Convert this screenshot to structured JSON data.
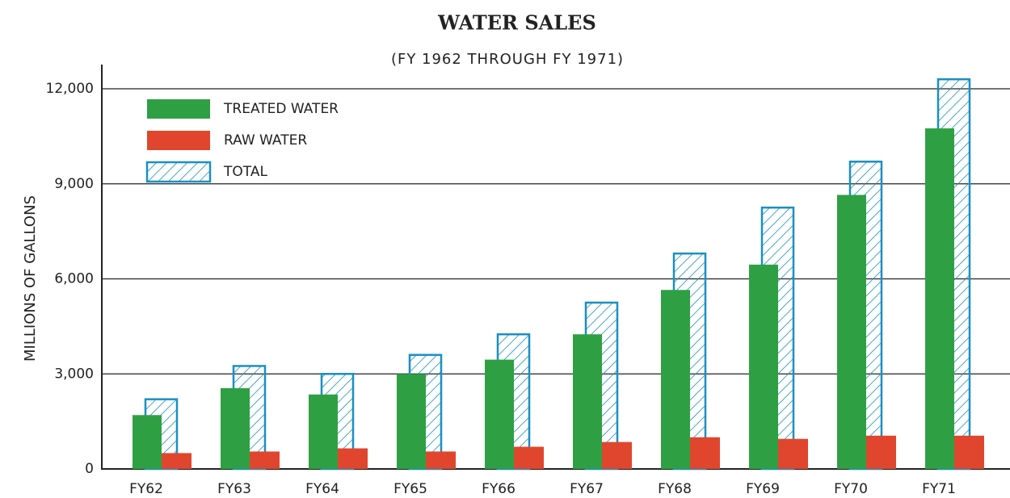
{
  "chart_data": {
    "type": "bar",
    "title": "WATER SALES",
    "subtitle": "(FY 1962 THROUGH FY 1971)",
    "y_label": "MILLIONS OF GALLONS",
    "categories": [
      "FY62",
      "FY63",
      "FY64",
      "FY65",
      "FY66",
      "FY67",
      "FY68",
      "FY69",
      "FY70",
      "FY71"
    ],
    "series": [
      {
        "name": "TREATED WATER",
        "color": "#2ea043",
        "values": [
          1700,
          2550,
          2350,
          3000,
          3450,
          4250,
          5650,
          6450,
          8650,
          10750
        ]
      },
      {
        "name": "RAW WATER",
        "color": "#e0462e",
        "values": [
          500,
          550,
          650,
          550,
          700,
          850,
          1000,
          950,
          1050,
          1050
        ]
      },
      {
        "name": "TOTAL",
        "color": "#1a8fc4",
        "values": [
          2200,
          3250,
          3000,
          3600,
          4250,
          5250,
          6800,
          8250,
          9700,
          12300
        ]
      }
    ],
    "ylim": [
      0,
      12600
    ],
    "yticks": [
      0,
      {
        "value": 3000,
        "label": "3,000"
      },
      {
        "value": 6000,
        "label": "6,000"
      },
      {
        "value": 9000,
        "label": "9,000"
      },
      {
        "value": 12000,
        "label": "12,000"
      }
    ],
    "grid": true
  }
}
